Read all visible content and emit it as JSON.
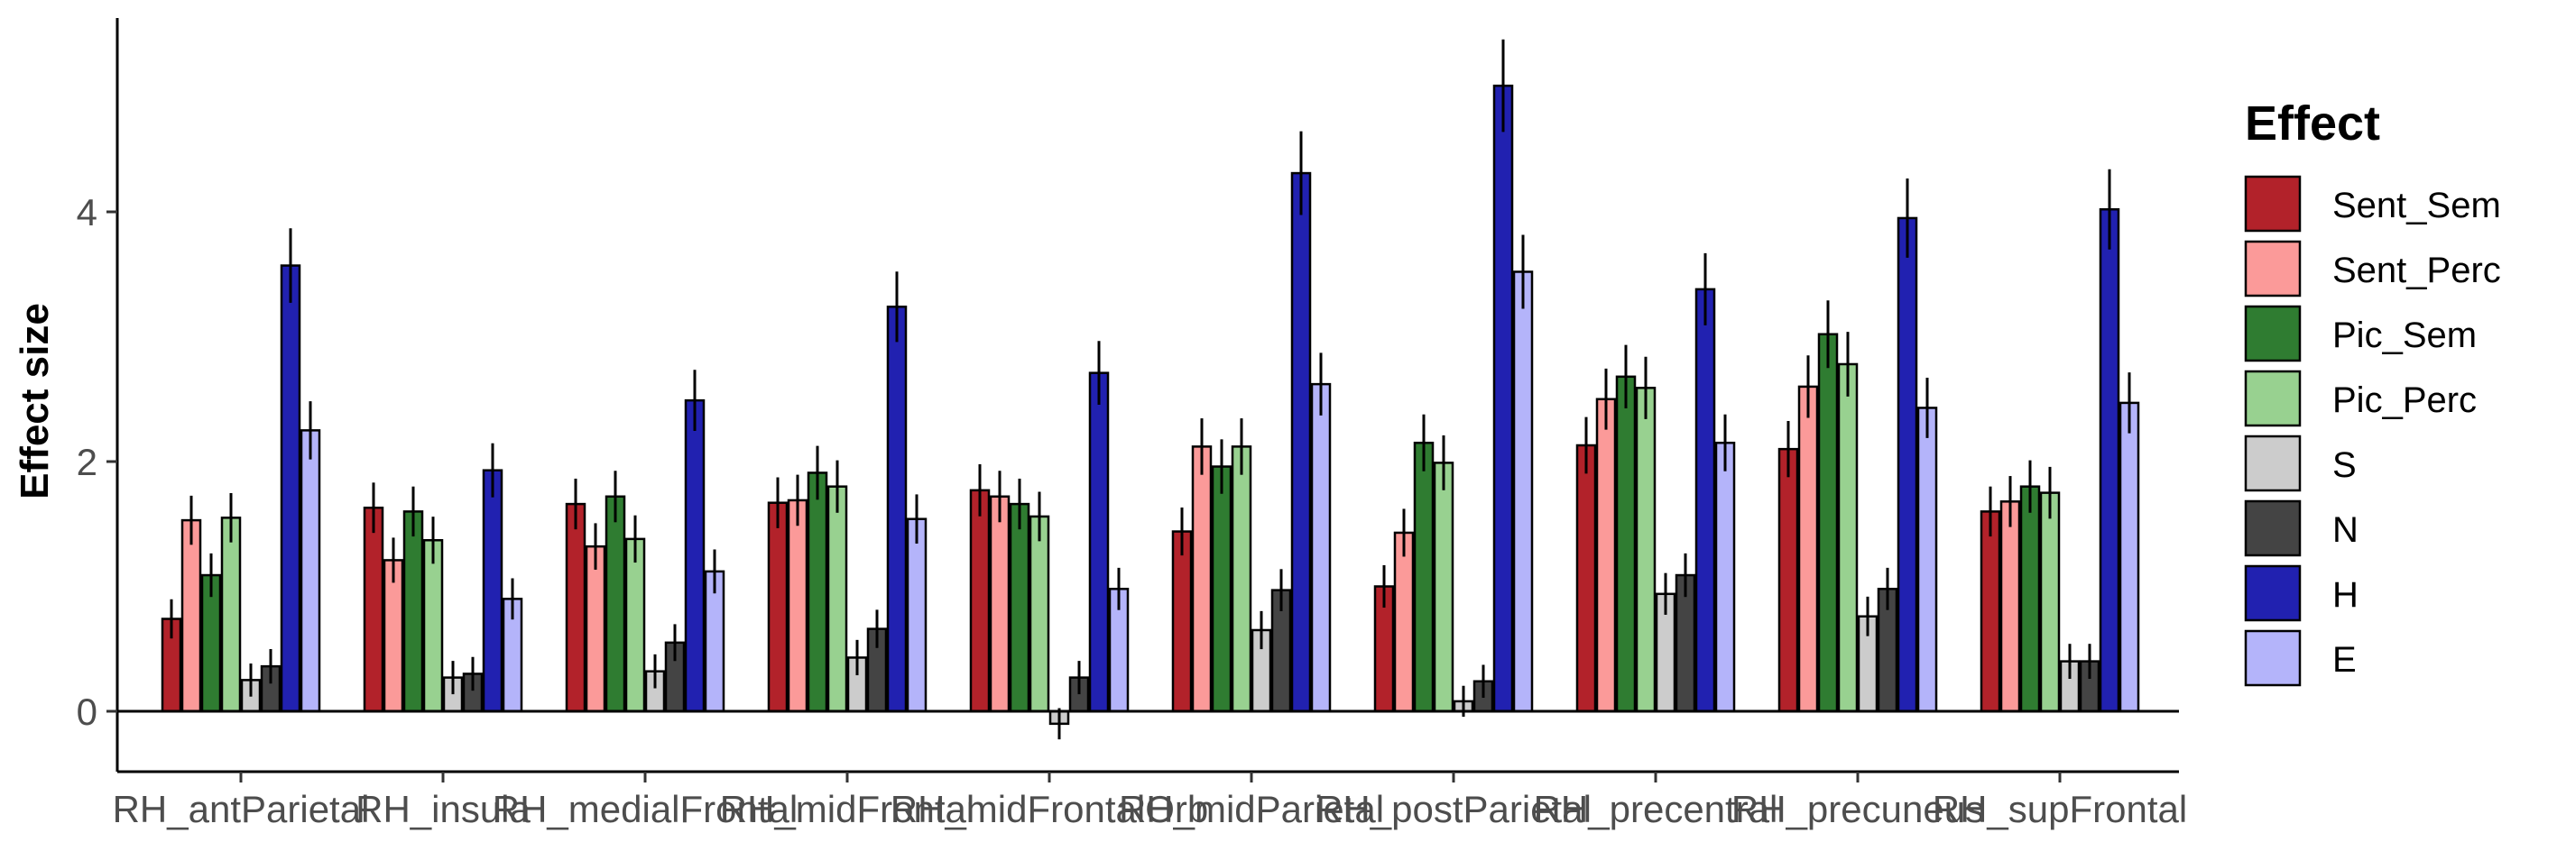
{
  "chart_data": {
    "type": "bar",
    "title": "",
    "xlabel": "",
    "ylabel": "Effect size",
    "ylim": [
      -0.5,
      5.5
    ],
    "yticks": [
      0,
      2,
      4
    ],
    "grid": false,
    "legend_position": "right",
    "legend_title": "Effect",
    "categories": [
      "RH_antParietal",
      "RH_insula",
      "RH_medialFrontal",
      "RH_midFrontal",
      "RH_midFrontalOrb",
      "RH_midParietal",
      "RH_postParietal",
      "RH_precentral",
      "RH_precuneus",
      "RH_supFrontal"
    ],
    "series": [
      {
        "name": "Sent_Sem",
        "color": "#b2222a",
        "values": [
          0.74,
          1.63,
          1.66,
          1.67,
          1.77,
          1.44,
          1.0,
          2.13,
          2.1,
          1.6
        ],
        "errors": [
          0.14,
          0.16,
          0.17,
          0.2,
          0.26,
          0.33,
          0.17,
          0.26,
          0.32,
          0.26
        ]
      },
      {
        "name": "Sent_Perc",
        "color": "#fb9a99",
        "values": [
          1.53,
          1.21,
          1.32,
          1.69,
          1.72,
          2.12,
          1.43,
          2.5,
          2.6,
          1.68
        ]
      },
      {
        "name": "Pic_Sem",
        "color": "#2f7c31",
        "values": [
          1.09,
          1.6,
          1.72,
          1.91,
          1.66,
          1.96,
          2.15,
          2.68,
          3.02,
          1.8
        ]
      },
      {
        "name": "Pic_Perc",
        "color": "#98d190",
        "values": [
          1.55,
          1.37,
          1.38,
          1.8,
          1.56,
          2.12,
          1.99,
          2.59,
          2.78,
          1.75
        ]
      },
      {
        "name": "S",
        "color": "#cccccc",
        "values": [
          0.25,
          0.27,
          0.32,
          0.43,
          -0.1,
          0.65,
          0.08,
          0.94,
          0.76,
          0.4
        ]
      },
      {
        "name": "N",
        "color": "#444444",
        "values": [
          0.36,
          0.3,
          0.55,
          0.66,
          0.27,
          0.97,
          0.24,
          1.09,
          0.98,
          0.4
        ]
      },
      {
        "name": "H",
        "color": "#2121b0",
        "values": [
          3.57,
          1.93,
          2.49,
          3.24,
          2.71,
          4.31,
          5.01,
          3.38,
          3.95,
          4.02
        ]
      },
      {
        "name": "E",
        "color": "#b4b4fa",
        "values": [
          2.25,
          0.9,
          1.12,
          1.54,
          0.98,
          2.62,
          3.52,
          2.15,
          2.43,
          2.47
        ]
      }
    ]
  }
}
